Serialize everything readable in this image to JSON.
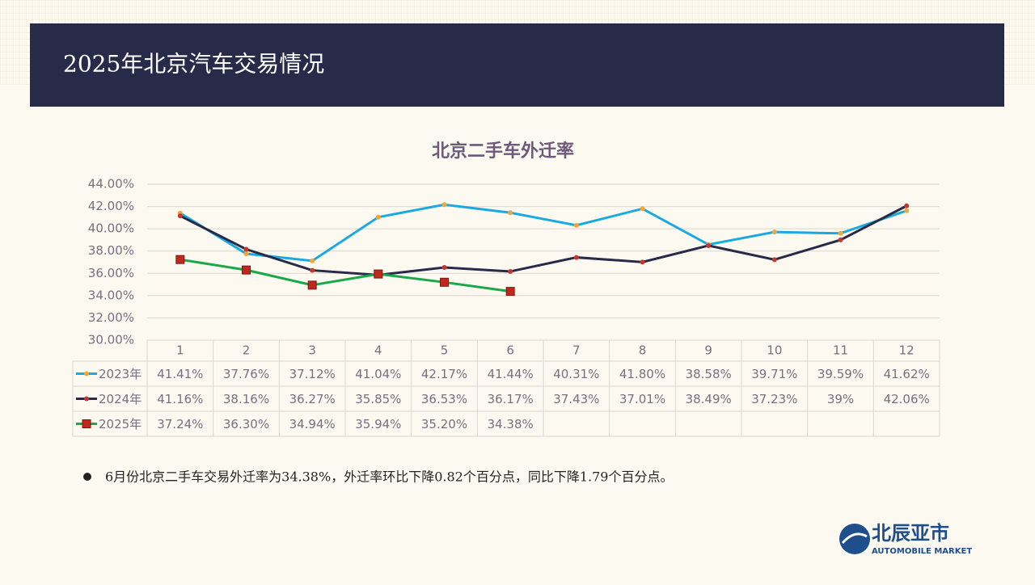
{
  "header": {
    "title": "2025年北京汽车交易情况"
  },
  "chart_data": {
    "type": "line",
    "title": "北京二手车外迁率",
    "categories": [
      "1",
      "2",
      "3",
      "4",
      "5",
      "6",
      "7",
      "8",
      "9",
      "10",
      "11",
      "12"
    ],
    "ylim": [
      30,
      44
    ],
    "yticks": [
      {
        "value": 30,
        "label": "30.00%"
      },
      {
        "value": 32,
        "label": "32.00%"
      },
      {
        "value": 34,
        "label": "34.00%"
      },
      {
        "value": 36,
        "label": "36.00%"
      },
      {
        "value": 38,
        "label": "38.00%"
      },
      {
        "value": 40,
        "label": "40.00%"
      },
      {
        "value": 42,
        "label": "42.00%"
      },
      {
        "value": 44,
        "label": "44.00%"
      }
    ],
    "grid": true,
    "series": [
      {
        "name": "2023年",
        "color": "#1ba9e1",
        "marker_color": "#f4a53a",
        "marker": "circle",
        "values": [
          41.41,
          37.76,
          37.12,
          41.04,
          42.17,
          41.44,
          40.31,
          41.8,
          38.58,
          39.71,
          39.59,
          41.62
        ],
        "value_labels": [
          "41.41%",
          "37.76%",
          "37.12%",
          "41.04%",
          "42.17%",
          "41.44%",
          "40.31%",
          "41.80%",
          "38.58%",
          "39.71%",
          "39.59%",
          "41.62%"
        ]
      },
      {
        "name": "2024年",
        "color": "#272a48",
        "marker_color": "#c0392b",
        "marker": "circle",
        "values": [
          41.16,
          38.16,
          36.27,
          35.85,
          36.53,
          36.17,
          37.43,
          37.01,
          38.49,
          37.23,
          39,
          42.06
        ],
        "value_labels": [
          "41.16%",
          "38.16%",
          "36.27%",
          "35.85%",
          "36.53%",
          "36.17%",
          "37.43%",
          "37.01%",
          "38.49%",
          "37.23%",
          "39%",
          "42.06%"
        ]
      },
      {
        "name": "2025年",
        "color": "#1aa84a",
        "marker_color": "#c0281e",
        "marker": "square",
        "values": [
          37.24,
          36.3,
          34.94,
          35.94,
          35.2,
          34.38,
          null,
          null,
          null,
          null,
          null,
          null
        ],
        "value_labels": [
          "37.24%",
          "36.30%",
          "34.94%",
          "35.94%",
          "35.20%",
          "34.38%",
          null,
          null,
          null,
          null,
          null,
          null
        ]
      }
    ]
  },
  "note": "6月份北京二手车交易外迁率为34.38%，外迁率环比下降0.82个百分点，同比下降1.79个百分点。",
  "logo": {
    "name": "北辰亚市",
    "subtitle": "AUTOMOBILE MARKET"
  }
}
